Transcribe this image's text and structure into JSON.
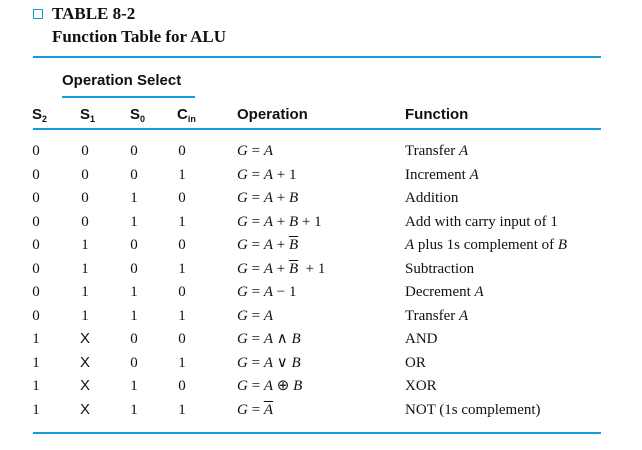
{
  "caption": {
    "title": "TABLE 8-2",
    "subtitle": "Function Table for ALU"
  },
  "header": {
    "operation_select": "Operation Select",
    "s2": "S",
    "s2_sub": "2",
    "s1": "S",
    "s1_sub": "1",
    "s0": "S",
    "s0_sub": "0",
    "cin": "C",
    "cin_sub": "in",
    "operation": "Operation",
    "function": "Function"
  },
  "rows": [
    {
      "s2": "0",
      "s1": "0",
      "s0": "0",
      "cin": "0",
      "op_html": "<i>G</i> = <i>A</i>",
      "fn_html": "Transfer <i>A</i>"
    },
    {
      "s2": "0",
      "s1": "0",
      "s0": "0",
      "cin": "1",
      "op_html": "<i>G</i> = <i>A</i> + 1",
      "fn_html": "Increment <i>A</i>"
    },
    {
      "s2": "0",
      "s1": "0",
      "s0": "1",
      "cin": "0",
      "op_html": "<i>G</i> = <i>A</i> + <i>B</i>",
      "fn_html": "Addition"
    },
    {
      "s2": "0",
      "s1": "0",
      "s0": "1",
      "cin": "1",
      "op_html": "<i>G</i> = <i>A</i> + <i>B</i> + 1",
      "fn_html": "Add with carry input of 1"
    },
    {
      "s2": "0",
      "s1": "1",
      "s0": "0",
      "cin": "0",
      "op_html": "<i>G</i> = <i>A</i> + <i class=\"ovl\">B</i>",
      "fn_html": "<i>A</i> plus 1s complement of <i>B</i>"
    },
    {
      "s2": "0",
      "s1": "1",
      "s0": "0",
      "cin": "1",
      "op_html": "<i>G</i> = <i>A</i> + <i class=\"ovl\">B</i> &nbsp;+ 1",
      "fn_html": "Subtraction"
    },
    {
      "s2": "0",
      "s1": "1",
      "s0": "1",
      "cin": "0",
      "op_html": "<i>G</i> = <i>A</i> &minus; 1",
      "fn_html": "Decrement <i>A</i>"
    },
    {
      "s2": "0",
      "s1": "1",
      "s0": "1",
      "cin": "1",
      "op_html": "<i>G</i> = <i>A</i>",
      "fn_html": "Transfer <i>A</i>"
    },
    {
      "s2": "1",
      "s1": "X",
      "s0": "0",
      "cin": "0",
      "op_html": "<i>G</i> = <i>A</i> &and; <i>B</i>",
      "fn_html": "AND"
    },
    {
      "s2": "1",
      "s1": "X",
      "s0": "0",
      "cin": "1",
      "op_html": "<i>G</i> = <i>A</i> &or; <i>B</i>",
      "fn_html": "OR"
    },
    {
      "s2": "1",
      "s1": "X",
      "s0": "1",
      "cin": "0",
      "op_html": "<i>G</i> = <i>A</i> &oplus; <i>B</i>",
      "fn_html": "XOR"
    },
    {
      "s2": "1",
      "s1": "X",
      "s0": "1",
      "cin": "1",
      "op_html": "<i>G</i> = <i class=\"ovl\">A</i>",
      "fn_html": "NOT (1s complement)"
    }
  ]
}
